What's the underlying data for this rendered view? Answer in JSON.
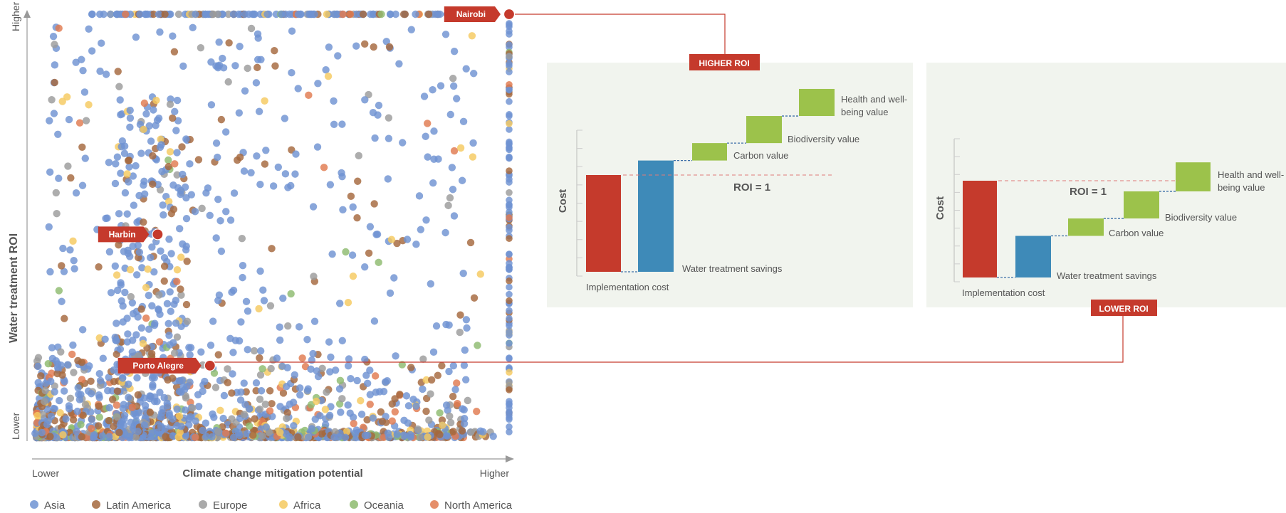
{
  "chart_data": [
    {
      "type": "scatter",
      "xlabel": "Climate change mitigation potential",
      "ylabel": "Water treatment ROI",
      "x_ticks": {
        "low": "Lower",
        "high": "Higher"
      },
      "y_ticks": {
        "low": "Lower",
        "high": "Higher"
      },
      "x_range": [
        0,
        1
      ],
      "y_range": [
        0,
        1
      ],
      "grid": false,
      "legend_position": "bottom",
      "series": [
        {
          "name": "Asia",
          "color": "#6f93d2"
        },
        {
          "name": "Latin America",
          "color": "#a5683d"
        },
        {
          "name": "Europe",
          "color": "#9b9b9b"
        },
        {
          "name": "Africa",
          "color": "#f5c95f"
        },
        {
          "name": "Oceania",
          "color": "#8dbb6f"
        },
        {
          "name": "North America",
          "color": "#e07a4f"
        }
      ],
      "highlighted_cities": [
        {
          "name": "Nairobi",
          "x": 1.0,
          "y": 1.0
        },
        {
          "name": "Harbin",
          "x": 0.26,
          "y": 0.48
        },
        {
          "name": "Porto Alegre",
          "x": 0.37,
          "y": 0.17
        }
      ]
    },
    {
      "type": "bar",
      "subtype": "waterfall",
      "callout": "HIGHER ROI",
      "ylabel": "Cost",
      "roi_label": "ROI = 1",
      "categories": [
        "Implementation cost",
        "Water treatment savings",
        "Carbon value",
        "Biodiversity value",
        "Health and well-being value"
      ],
      "values": [
        1.0,
        1.15,
        0.18,
        0.28,
        0.28
      ],
      "colors": [
        "#c53a2c",
        "#3e8ab8",
        "#9cc24b",
        "#9cc24b",
        "#9cc24b"
      ]
    },
    {
      "type": "bar",
      "subtype": "waterfall",
      "callout": "LOWER ROI",
      "ylabel": "Cost",
      "roi_label": "ROI = 1",
      "categories": [
        "Implementation cost",
        "Water treatment savings",
        "Carbon value",
        "Biodiversity value",
        "Health and well-being value"
      ],
      "values": [
        1.0,
        0.43,
        0.18,
        0.28,
        0.3
      ],
      "colors": [
        "#c53a2c",
        "#3e8ab8",
        "#9cc24b",
        "#9cc24b",
        "#9cc24b"
      ]
    }
  ]
}
